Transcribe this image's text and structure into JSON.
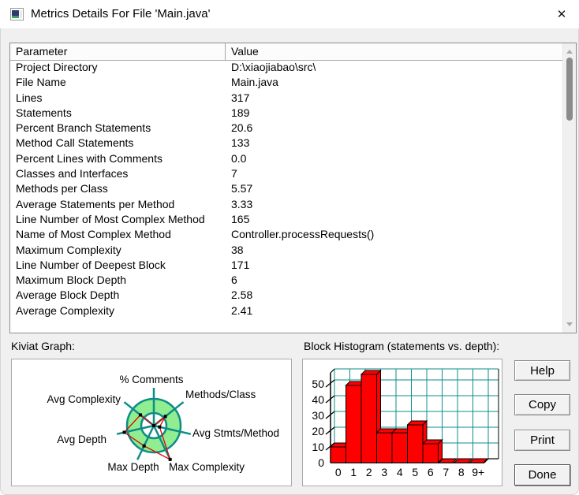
{
  "window": {
    "title": "Metrics Details For File 'Main.java'",
    "close_glyph": "✕"
  },
  "table": {
    "columns": [
      "Parameter",
      "Value"
    ],
    "rows": [
      {
        "param": "Project Directory",
        "value": "D:\\xiaojiabao\\src\\"
      },
      {
        "param": "File Name",
        "value": "Main.java"
      },
      {
        "param": "Lines",
        "value": "317"
      },
      {
        "param": "Statements",
        "value": "189"
      },
      {
        "param": "Percent Branch Statements",
        "value": "20.6"
      },
      {
        "param": "Method Call Statements",
        "value": "133"
      },
      {
        "param": "Percent Lines with Comments",
        "value": "0.0"
      },
      {
        "param": "Classes and Interfaces",
        "value": "7"
      },
      {
        "param": "Methods per Class",
        "value": "5.57"
      },
      {
        "param": "Average Statements per Method",
        "value": "3.33"
      },
      {
        "param": "Line Number of Most Complex Method",
        "value": "165"
      },
      {
        "param": "Name of Most Complex Method",
        "value": "Controller.processRequests()"
      },
      {
        "param": "Maximum Complexity",
        "value": "38"
      },
      {
        "param": "Line Number of Deepest Block",
        "value": "171"
      },
      {
        "param": "Maximum Block Depth",
        "value": "6"
      },
      {
        "param": "Average Block Depth",
        "value": "2.58"
      },
      {
        "param": "Average Complexity",
        "value": "2.41"
      }
    ]
  },
  "panels": {
    "kiviat_label": "Kiviat Graph:",
    "histogram_label": "Block Histogram (statements vs. depth):"
  },
  "buttons": {
    "help": "Help",
    "copy": "Copy",
    "print": "Print",
    "done": "Done"
  },
  "colors": {
    "teal": "#0d8c88",
    "ring_green": "#90EE90",
    "bar_red": "#ff0000",
    "polygon_red": "#e30000",
    "marker_black": "#000000",
    "axis_black": "#000000"
  },
  "chart_data": [
    {
      "type": "radar",
      "title": "Kiviat Graph",
      "axes": [
        "% Comments",
        "Methods/Class",
        "Avg Stmts/Method",
        "Max Complexity",
        "Max Depth",
        "Avg Depth",
        "Avg Complexity"
      ],
      "values": [
        0.0,
        0.55,
        0.22,
        1.4,
        0.84,
        1.13,
        0.64
      ],
      "value_scale": "fraction of outer ring radius",
      "ring": {
        "inner_radius": 0.47,
        "outer_radius": 1.0
      },
      "axis_length": 1.41,
      "legend_position": "none",
      "grid": "ring"
    },
    {
      "type": "bar",
      "title": "Block Histogram (statements vs. depth)",
      "categories": [
        "0",
        "1",
        "2",
        "3",
        "4",
        "5",
        "6",
        "7",
        "8",
        "9+"
      ],
      "values": [
        10,
        49,
        56,
        19,
        19,
        24,
        12,
        0,
        0,
        0
      ],
      "xlabel": "depth",
      "ylabel": "statements",
      "ylim": [
        0,
        57.5
      ],
      "yticks": [
        0,
        10,
        20,
        30,
        40,
        50
      ],
      "grid": "on",
      "style": "3d-red-bars",
      "legend_position": "none"
    }
  ]
}
